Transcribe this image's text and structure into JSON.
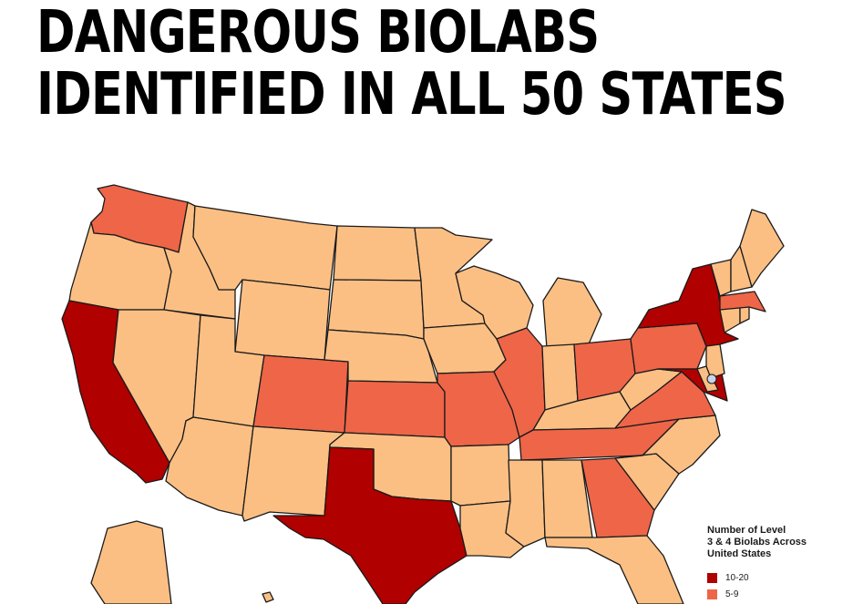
{
  "headline": {
    "line1": "DANGEROUS BIOLABS",
    "line2": "IDENTIFIED IN ALL 50 STATES"
  },
  "colors": {
    "high": "#b00000",
    "mid": "#ee6548",
    "low": "#fbbf84",
    "outline": "#1a1a1a",
    "dot": "#c8d4ea"
  },
  "legend": {
    "title_line1": "Number of Level",
    "title_line2": "3 & 4 Biolabs Across",
    "title_line3": "United States",
    "items": [
      {
        "label": "10-20",
        "tier": "high"
      },
      {
        "label": "5-9",
        "tier": "mid"
      }
    ]
  },
  "states": [
    {
      "name": "Washington",
      "tier": "mid"
    },
    {
      "name": "Oregon",
      "tier": "low"
    },
    {
      "name": "California",
      "tier": "high"
    },
    {
      "name": "Idaho",
      "tier": "low"
    },
    {
      "name": "Nevada",
      "tier": "low"
    },
    {
      "name": "Montana",
      "tier": "low"
    },
    {
      "name": "Wyoming",
      "tier": "low"
    },
    {
      "name": "Utah",
      "tier": "low"
    },
    {
      "name": "Arizona",
      "tier": "low"
    },
    {
      "name": "Colorado",
      "tier": "mid"
    },
    {
      "name": "New Mexico",
      "tier": "low"
    },
    {
      "name": "North Dakota",
      "tier": "low"
    },
    {
      "name": "South Dakota",
      "tier": "low"
    },
    {
      "name": "Nebraska",
      "tier": "low"
    },
    {
      "name": "Kansas",
      "tier": "mid"
    },
    {
      "name": "Oklahoma",
      "tier": "low"
    },
    {
      "name": "Texas",
      "tier": "high"
    },
    {
      "name": "Minnesota",
      "tier": "low"
    },
    {
      "name": "Iowa",
      "tier": "low"
    },
    {
      "name": "Missouri",
      "tier": "mid"
    },
    {
      "name": "Arkansas",
      "tier": "low"
    },
    {
      "name": "Louisiana",
      "tier": "low"
    },
    {
      "name": "Wisconsin",
      "tier": "low"
    },
    {
      "name": "Illinois",
      "tier": "mid"
    },
    {
      "name": "Michigan",
      "tier": "low"
    },
    {
      "name": "Indiana",
      "tier": "low"
    },
    {
      "name": "Ohio",
      "tier": "mid"
    },
    {
      "name": "Kentucky",
      "tier": "low"
    },
    {
      "name": "Tennessee",
      "tier": "mid"
    },
    {
      "name": "Mississippi",
      "tier": "low"
    },
    {
      "name": "Alabama",
      "tier": "low"
    },
    {
      "name": "Georgia",
      "tier": "mid"
    },
    {
      "name": "Florida",
      "tier": "low"
    },
    {
      "name": "South Carolina",
      "tier": "low"
    },
    {
      "name": "North Carolina",
      "tier": "low"
    },
    {
      "name": "Virginia",
      "tier": "mid"
    },
    {
      "name": "West Virginia",
      "tier": "low"
    },
    {
      "name": "Pennsylvania",
      "tier": "mid"
    },
    {
      "name": "New York",
      "tier": "high"
    },
    {
      "name": "Maryland",
      "tier": "high"
    },
    {
      "name": "Delaware",
      "tier": "low"
    },
    {
      "name": "New Jersey",
      "tier": "low"
    },
    {
      "name": "Connecticut",
      "tier": "low"
    },
    {
      "name": "Rhode Island",
      "tier": "low"
    },
    {
      "name": "Massachusetts",
      "tier": "mid"
    },
    {
      "name": "Vermont",
      "tier": "low"
    },
    {
      "name": "New Hampshire",
      "tier": "low"
    },
    {
      "name": "Maine",
      "tier": "low"
    },
    {
      "name": "Alaska",
      "tier": "low"
    },
    {
      "name": "Hawaii",
      "tier": "low"
    }
  ]
}
